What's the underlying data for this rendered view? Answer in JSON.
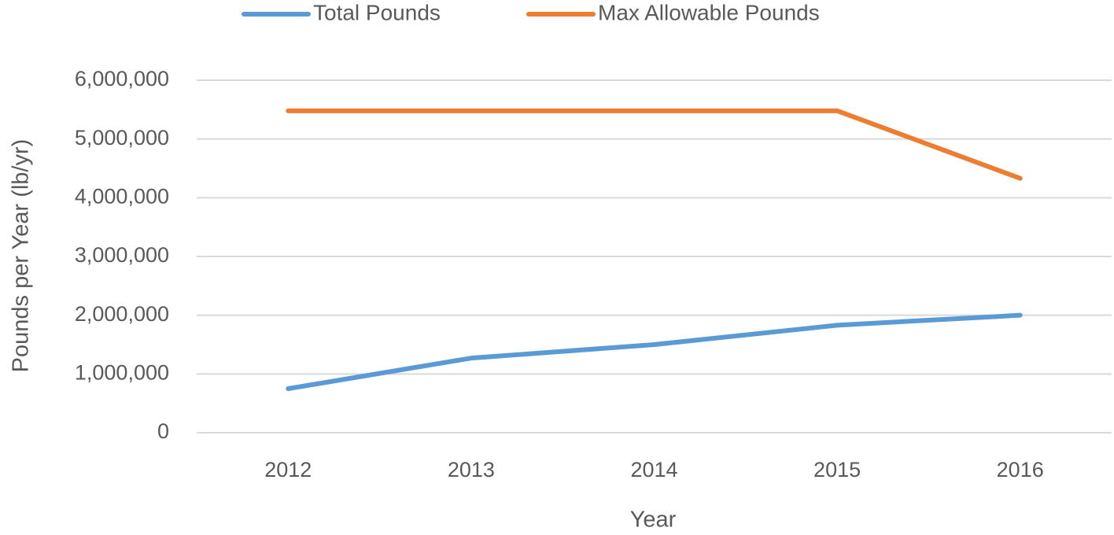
{
  "chart_data": {
    "type": "line",
    "x_label": "Year",
    "y_label": "Pounds per Year (lb/yr)",
    "categories": [
      "2012",
      "2013",
      "2014",
      "2015",
      "2016"
    ],
    "series": [
      {
        "name": "Total Pounds",
        "color": "#5b9bd5",
        "values": [
          750000,
          1270000,
          1500000,
          1830000,
          2000000
        ]
      },
      {
        "name": "Max Allowable Pounds",
        "color": "#ed7d31",
        "values": [
          5480000,
          5480000,
          5480000,
          5480000,
          4330000
        ]
      }
    ],
    "ylim": [
      0,
      6000000
    ],
    "yticks": [
      0,
      {
        "value": 1000000,
        "label": "1,000,000"
      },
      {
        "value": 2000000,
        "label": "2,000,000"
      },
      {
        "value": 3000000,
        "label": "3,000,000"
      },
      {
        "value": 4000000,
        "label": "4,000,000"
      },
      {
        "value": 5000000,
        "label": "5,000,000"
      },
      {
        "value": 6000000,
        "label": "6,000,000"
      }
    ],
    "grid": true,
    "legend": "top"
  }
}
